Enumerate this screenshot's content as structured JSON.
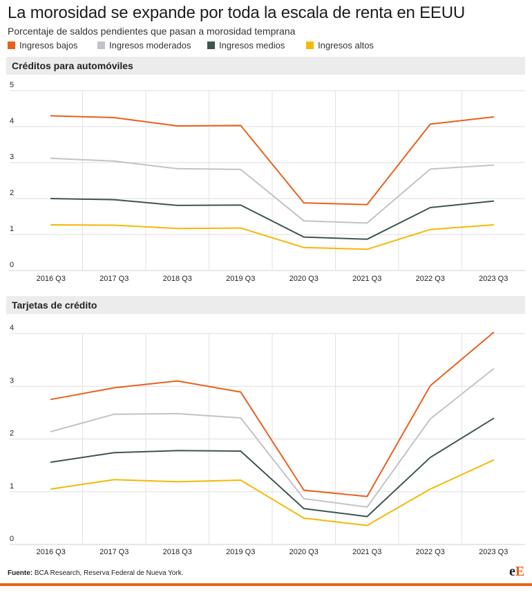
{
  "title": "La morosidad se expande por toda la escala de renta en EEUU",
  "subtitle": "Porcentaje de saldos pendientes que pasan a morosidad temprana",
  "legend": [
    {
      "label": "Ingresos bajos",
      "color": "#e8601c"
    },
    {
      "label": "Ingresos moderados",
      "color": "#c2c2ca"
    },
    {
      "label": "Ingresos medios",
      "color": "#3d5550"
    },
    {
      "label": "Ingresos altos",
      "color": "#f5b800"
    }
  ],
  "source_label": "Fuente:",
  "source_text": " BCA Research, Reserva Federal de Nueva York.",
  "logo": {
    "part1": "e",
    "part2": "E"
  },
  "chart_data": [
    {
      "type": "line",
      "title": "Créditos para automóviles",
      "categories": [
        "2016 Q3",
        "2017 Q3",
        "2018 Q3",
        "2019 Q3",
        "2020 Q3",
        "2021 Q3",
        "2022 Q3",
        "2023 Q3"
      ],
      "ylim": [
        0,
        5
      ],
      "yticks": [
        0,
        1,
        2,
        3,
        4,
        5
      ],
      "grid": true,
      "legend_position": "top",
      "series": [
        {
          "name": "Ingresos bajos",
          "color": "#e8601c",
          "values": [
            4.3,
            4.25,
            4.02,
            4.03,
            1.88,
            1.83,
            4.07,
            4.27
          ]
        },
        {
          "name": "Ingresos moderados",
          "color": "#c2c2ca",
          "values": [
            3.12,
            3.04,
            2.83,
            2.81,
            1.38,
            1.32,
            2.82,
            2.93
          ]
        },
        {
          "name": "Ingresos medios",
          "color": "#3d5550",
          "values": [
            2.0,
            1.97,
            1.81,
            1.82,
            0.93,
            0.87,
            1.75,
            1.93
          ]
        },
        {
          "name": "Ingresos altos",
          "color": "#f5b800",
          "values": [
            1.27,
            1.26,
            1.17,
            1.18,
            0.64,
            0.59,
            1.14,
            1.27
          ]
        }
      ]
    },
    {
      "type": "line",
      "title": "Tarjetas de crédito",
      "categories": [
        "2016 Q3",
        "2017 Q3",
        "2018 Q3",
        "2019 Q3",
        "2020 Q3",
        "2021 Q3",
        "2022 Q3",
        "2023 Q3"
      ],
      "ylim": [
        0,
        4
      ],
      "yticks": [
        0,
        1,
        2,
        3,
        4
      ],
      "grid": true,
      "legend_position": "top",
      "series": [
        {
          "name": "Ingresos bajos",
          "color": "#e8601c",
          "values": [
            2.75,
            2.97,
            3.1,
            2.89,
            1.03,
            0.91,
            3.01,
            4.02
          ]
        },
        {
          "name": "Ingresos moderados",
          "color": "#c2c2ca",
          "values": [
            2.14,
            2.47,
            2.48,
            2.4,
            0.87,
            0.71,
            2.38,
            3.33
          ]
        },
        {
          "name": "Ingresos medios",
          "color": "#3d5550",
          "values": [
            1.56,
            1.74,
            1.78,
            1.77,
            0.68,
            0.53,
            1.65,
            2.39
          ]
        },
        {
          "name": "Ingresos altos",
          "color": "#f5b800",
          "values": [
            1.05,
            1.23,
            1.19,
            1.22,
            0.5,
            0.36,
            1.05,
            1.6
          ]
        }
      ]
    }
  ]
}
